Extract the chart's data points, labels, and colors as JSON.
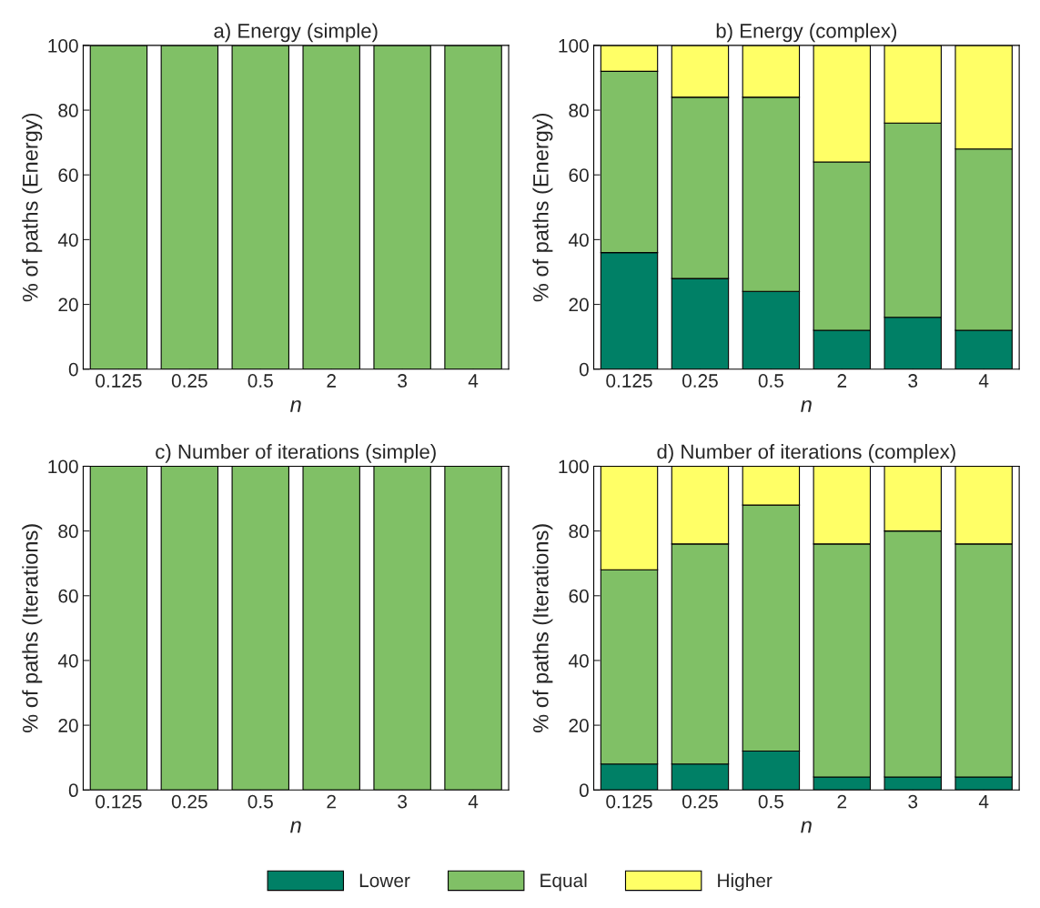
{
  "chart_data": [
    {
      "type": "bar",
      "title": "a) Energy (simple)",
      "xlabel": "n",
      "ylabel": "% of paths (Energy)",
      "categories": [
        "0.125",
        "0.25",
        "0.5",
        "2",
        "3",
        "4"
      ],
      "stacked": true,
      "ylim": [
        0,
        100
      ],
      "yticks": [
        0,
        20,
        40,
        60,
        80,
        100
      ],
      "grid": false,
      "series": [
        {
          "color": "#80c066",
          "values": [
            100,
            100,
            100,
            100,
            100,
            100
          ]
        }
      ]
    },
    {
      "type": "bar",
      "title": "b) Energy (complex)",
      "xlabel": "n",
      "ylabel": "% of paths (Energy)",
      "categories": [
        "0.125",
        "0.25",
        "0.5",
        "2",
        "3",
        "4"
      ],
      "stacked": true,
      "ylim": [
        0,
        100
      ],
      "yticks": [
        0,
        20,
        40,
        60,
        80,
        100
      ],
      "grid": false,
      "series": [
        {
          "color": "#008066",
          "values": [
            36,
            28,
            24,
            12,
            16,
            12
          ]
        },
        {
          "color": "#80c066",
          "values": [
            56,
            56,
            60,
            52,
            60,
            56
          ]
        },
        {
          "color": "#ffff66",
          "values": [
            8,
            16,
            16,
            36,
            24,
            32
          ]
        }
      ]
    },
    {
      "type": "bar",
      "title": "c) Number of iterations (simple)",
      "xlabel": "n",
      "ylabel": "% of paths (Iterations)",
      "categories": [
        "0.125",
        "0.25",
        "0.5",
        "2",
        "3",
        "4"
      ],
      "stacked": true,
      "ylim": [
        0,
        100
      ],
      "yticks": [
        0,
        20,
        40,
        60,
        80,
        100
      ],
      "grid": false,
      "series": [
        {
          "color": "#80c066",
          "values": [
            100,
            100,
            100,
            100,
            100,
            100
          ]
        }
      ]
    },
    {
      "type": "bar",
      "title": "d) Number of iterations (complex)",
      "xlabel": "n",
      "ylabel": "% of paths (Iterations)",
      "categories": [
        "0.125",
        "0.25",
        "0.5",
        "2",
        "3",
        "4"
      ],
      "stacked": true,
      "ylim": [
        0,
        100
      ],
      "yticks": [
        0,
        20,
        40,
        60,
        80,
        100
      ],
      "grid": false,
      "legend": "bottom",
      "series": [
        {
          "name": "Lower",
          "color": "#008066",
          "values": [
            8,
            8,
            12,
            4,
            4,
            4
          ]
        },
        {
          "name": "Equal",
          "color": "#80c066",
          "values": [
            60,
            68,
            76,
            72,
            76,
            72
          ]
        },
        {
          "name": "Higher",
          "color": "#ffff66",
          "values": [
            32,
            24,
            12,
            24,
            20,
            24
          ]
        }
      ]
    }
  ]
}
